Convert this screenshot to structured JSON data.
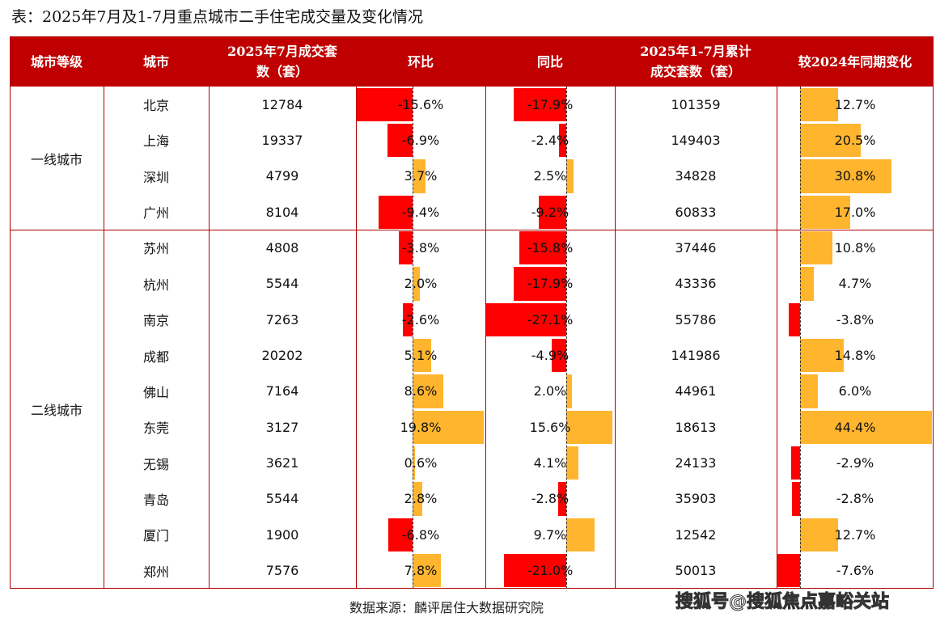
{
  "title": "表：2025年7月及1-7月重点城市二手住宅成交量及变化情况",
  "source": "数据来源：麟评居住大数据研究院",
  "watermark": "搜狐号@搜狐焦点嘉峪关站",
  "colors": {
    "header": "#c00000",
    "negative": "#ff0000",
    "positive": "#ffb52e"
  },
  "chart_data": {
    "type": "table",
    "columns": [
      "城市等级",
      "城市",
      "2025年7月成交套数（套）",
      "环比",
      "同比",
      "2025年1-7月累计成交套数（套）",
      "较2024年同期变化"
    ],
    "tiers": [
      {
        "label": "一线城市",
        "rows": 4
      },
      {
        "label": "二线城市",
        "rows": 10
      }
    ],
    "rows": [
      {
        "city": "北京",
        "july": "12784",
        "mom": -15.6,
        "yoy": -17.9,
        "ytd": "101359",
        "ytd_chg": 12.7
      },
      {
        "city": "上海",
        "july": "19337",
        "mom": -6.9,
        "yoy": -2.4,
        "ytd": "149403",
        "ytd_chg": 20.5
      },
      {
        "city": "深圳",
        "july": "4799",
        "mom": 3.7,
        "yoy": 2.5,
        "ytd": "34828",
        "ytd_chg": 30.8
      },
      {
        "city": "广州",
        "july": "8104",
        "mom": -9.4,
        "yoy": -9.2,
        "ytd": "60833",
        "ytd_chg": 17.0
      },
      {
        "city": "苏州",
        "july": "4808",
        "mom": -3.8,
        "yoy": -15.8,
        "ytd": "37446",
        "ytd_chg": 10.8
      },
      {
        "city": "杭州",
        "july": "5544",
        "mom": 2.0,
        "yoy": -17.9,
        "ytd": "43336",
        "ytd_chg": 4.7
      },
      {
        "city": "南京",
        "july": "7263",
        "mom": -2.6,
        "yoy": -27.1,
        "ytd": "55786",
        "ytd_chg": -3.8
      },
      {
        "city": "成都",
        "july": "20202",
        "mom": 5.1,
        "yoy": -4.9,
        "ytd": "141986",
        "ytd_chg": 14.8
      },
      {
        "city": "佛山",
        "july": "7164",
        "mom": 8.6,
        "yoy": 2.0,
        "ytd": "44961",
        "ytd_chg": 6.0
      },
      {
        "city": "东莞",
        "july": "3127",
        "mom": 19.8,
        "yoy": 15.6,
        "ytd": "18613",
        "ytd_chg": 44.4
      },
      {
        "city": "无锡",
        "july": "3621",
        "mom": 0.6,
        "yoy": 4.1,
        "ytd": "24133",
        "ytd_chg": -2.9
      },
      {
        "city": "青岛",
        "july": "5544",
        "mom": 2.8,
        "yoy": -2.8,
        "ytd": "35903",
        "ytd_chg": -2.8
      },
      {
        "city": "厦门",
        "july": "1900",
        "mom": -6.8,
        "yoy": 9.7,
        "ytd": "12542",
        "ytd_chg": 12.7
      },
      {
        "city": "郑州",
        "july": "7576",
        "mom": 7.8,
        "yoy": -21.0,
        "ytd": "50013",
        "ytd_chg": -7.6
      }
    ]
  }
}
